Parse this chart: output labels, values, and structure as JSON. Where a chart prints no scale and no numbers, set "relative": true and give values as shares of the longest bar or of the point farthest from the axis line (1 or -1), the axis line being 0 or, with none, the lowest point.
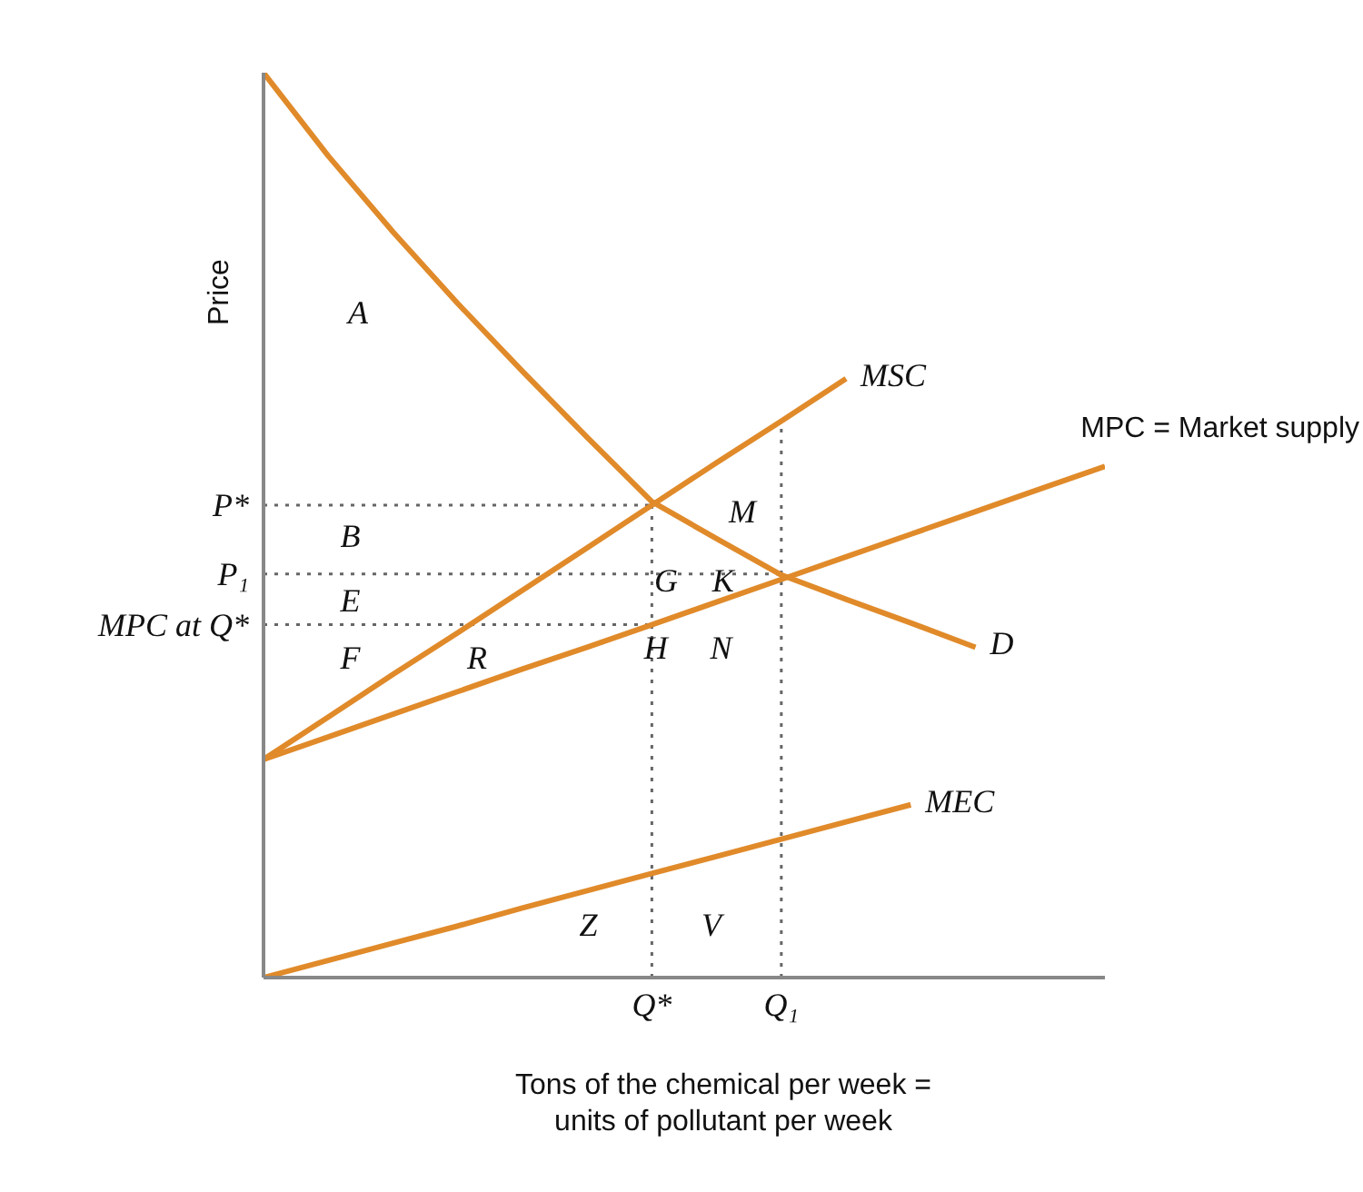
{
  "chart_data": {
    "type": "line",
    "relative": true,
    "ylabel": "Price",
    "xlabel": "Tons of the chemical per week = units of pollutant per week",
    "marker": "none",
    "categories": [
      null,
      null,
      null,
      null,
      null,
      null,
      "Q*",
      null,
      "Q₁",
      null,
      null,
      null,
      null,
      null
    ],
    "series": [
      {
        "name": "D",
        "color": "#e08a2a",
        "values": [
          1,
          0.908,
          0.824,
          0.745,
          0.67,
          0.597,
          0.526,
          0.485,
          0.445,
          0.418,
          0.392,
          0.365,
          null,
          null
        ]
      },
      {
        "name": "MSC",
        "color": "#e08a2a",
        "values": [
          0.241,
          0.288,
          0.335,
          0.381,
          0.428,
          0.475,
          0.522,
          0.569,
          0.615,
          0.662,
          null,
          null,
          null,
          null
        ]
      },
      {
        "name": "MPC = Market supply",
        "color": "#e08a2a",
        "values": [
          0.241,
          0.266,
          0.291,
          0.316,
          0.341,
          0.365,
          0.39,
          0.415,
          0.44,
          0.465,
          0.49,
          0.515,
          0.54,
          0.565
        ]
      },
      {
        "name": "MEC",
        "color": "#e08a2a",
        "values": [
          0,
          0.019,
          0.038,
          0.057,
          0.077,
          0.096,
          0.115,
          0.134,
          0.153,
          0.172,
          0.191,
          null,
          null,
          null
        ]
      }
    ],
    "ref_lines": [
      {
        "axis": "x",
        "value": "Q*",
        "color": "#666666",
        "line_style": "dotted"
      },
      {
        "axis": "x",
        "value": "Q₁",
        "color": "#666666",
        "line_style": "dotted"
      },
      {
        "axis": "y",
        "value": 0.522,
        "label": "P*",
        "color": "#666666",
        "line_style": "dotted"
      },
      {
        "axis": "y",
        "value": 0.446,
        "label": "P₁",
        "color": "#666666",
        "line_style": "dotted"
      },
      {
        "axis": "y",
        "value": 0.39,
        "label": "MPC at Q*",
        "color": "#666666",
        "line_style": "dotted"
      }
    ],
    "annotations": [
      "A",
      "B",
      "E",
      "F",
      "G",
      "K",
      "H",
      "N",
      "M",
      "R",
      "Z",
      "V"
    ]
  }
}
